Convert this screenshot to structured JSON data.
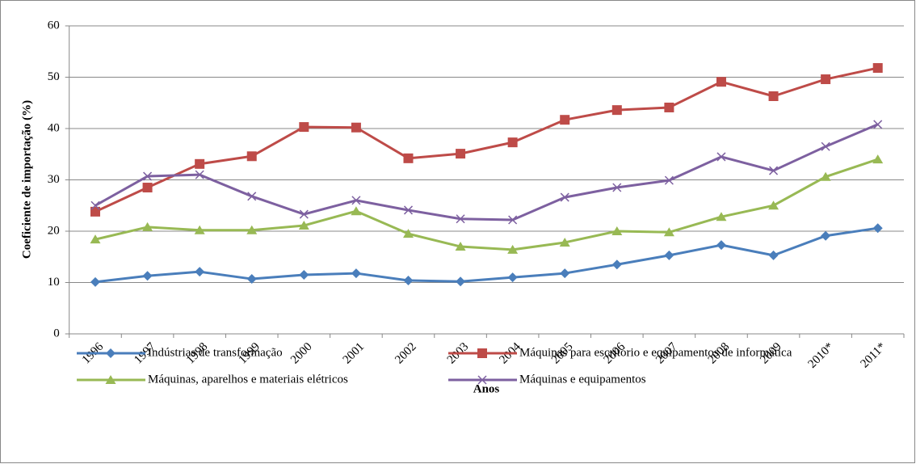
{
  "chart_data": {
    "type": "line",
    "x_label": "Anos",
    "y_label": "Coeficiente de importação (%)",
    "categories": [
      "1996",
      "1997",
      "1998",
      "1999",
      "2000",
      "2001",
      "2002",
      "2003",
      "2004",
      "2005",
      "2006",
      "2007",
      "2008",
      "2009",
      "2010*",
      "2011*"
    ],
    "series": [
      {
        "name": "Indústrias de transformação",
        "color": "#4a7ebb",
        "marker": "diamond",
        "values": [
          10.1,
          11.3,
          12.1,
          10.7,
          11.5,
          11.8,
          10.4,
          10.2,
          11.0,
          11.8,
          13.5,
          15.3,
          17.3,
          15.3,
          19.1,
          20.6
        ]
      },
      {
        "name": "Máquinas para escritório e equipamentos de informática",
        "color": "#be4b48",
        "marker": "square",
        "values": [
          23.8,
          28.5,
          33.1,
          34.6,
          40.3,
          40.2,
          34.2,
          35.1,
          37.3,
          41.7,
          43.6,
          44.1,
          49.1,
          46.3,
          49.6,
          51.8
        ]
      },
      {
        "name": "Máquinas, aparelhos e materiais elétricos",
        "color": "#98b954",
        "marker": "triangle",
        "values": [
          18.4,
          20.8,
          20.2,
          20.2,
          21.1,
          23.9,
          19.5,
          17.0,
          16.4,
          17.8,
          20.0,
          19.8,
          22.8,
          25.0,
          30.6,
          34.0
        ]
      },
      {
        "name": "Máquinas e equipamentos",
        "color": "#7d60a0",
        "marker": "x",
        "values": [
          25.0,
          30.7,
          31.0,
          26.8,
          23.3,
          26.0,
          24.1,
          22.4,
          22.2,
          26.6,
          28.5,
          29.9,
          34.5,
          31.8,
          36.5,
          40.8
        ]
      }
    ],
    "ylim": [
      0,
      60
    ],
    "yticks": [
      0,
      10,
      20,
      30,
      40,
      50,
      60
    ],
    "grid": true
  }
}
